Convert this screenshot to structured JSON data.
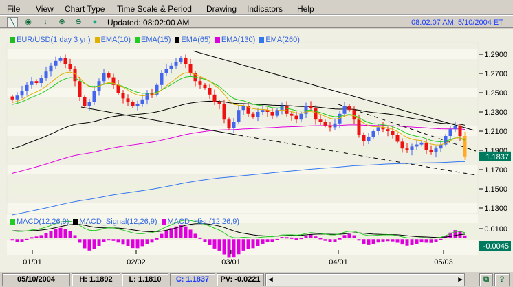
{
  "menu": [
    "File",
    "View",
    "Chart Type",
    "Time Scale & Period",
    "Drawing",
    "Indicators",
    "Help"
  ],
  "toolbar": {
    "icons": [
      "draw-line-icon",
      "crosshair-icon",
      "down-arrow-icon",
      "zoom-in-icon",
      "zoom-out-icon",
      "green-dot-icon"
    ],
    "updated": "Updated: 08:02:00 AM",
    "clock": "08:02:07 AM, 5/10/2004 ET"
  },
  "legend": [
    {
      "label": "EUR/USD(1 day  3 yr.)",
      "color": "#22bb22"
    },
    {
      "label": "EMA(10)",
      "color": "#e0b000"
    },
    {
      "label": "EMA(15)",
      "color": "#22cc22"
    },
    {
      "label": "EMA(65)",
      "color": "#000000"
    },
    {
      "label": "EMA(130)",
      "color": "#dd00dd"
    },
    {
      "label": "EMA(260)",
      "color": "#3377ee"
    }
  ],
  "macd_legend": [
    {
      "label": "MACD(12,26,9)",
      "color": "#22cc22"
    },
    {
      "label": "MACD_Signal(12,26,9)",
      "color": "#000000"
    },
    {
      "label": "MACD_Hist.(12,26,9)",
      "color": "#dd00dd"
    }
  ],
  "chart_data": [
    {
      "type": "candlestick",
      "series_name": "EUR/USD(1 day  3 yr.)",
      "y_ticks": [
        "1.2900",
        "1.2700",
        "1.2500",
        "1.2300",
        "1.2100",
        "1.1900",
        "1.1700",
        "1.1500",
        "1.1300"
      ],
      "ylim": [
        1.125,
        1.298
      ],
      "x_ticks": [
        "01/01",
        "02/02",
        "03/01",
        "04/01",
        "05/03"
      ],
      "last_value": "1.1837",
      "up_color": "#4466ee",
      "down_color": "#ee1111",
      "closes": [
        1.243,
        1.247,
        1.252,
        1.258,
        1.262,
        1.26,
        1.265,
        1.272,
        1.278,
        1.283,
        1.286,
        1.28,
        1.275,
        1.262,
        1.245,
        1.236,
        1.24,
        1.252,
        1.262,
        1.27,
        1.266,
        1.258,
        1.25,
        1.244,
        1.24,
        1.236,
        1.238,
        1.243,
        1.25,
        1.248,
        1.258,
        1.27,
        1.275,
        1.278,
        1.282,
        1.286,
        1.28,
        1.27,
        1.262,
        1.258,
        1.255,
        1.248,
        1.24,
        1.238,
        1.222,
        1.213,
        1.22,
        1.232,
        1.236,
        1.228,
        1.225,
        1.23,
        1.232,
        1.23,
        1.226,
        1.232,
        1.236,
        1.228,
        1.226,
        1.222,
        1.228,
        1.236,
        1.234,
        1.222,
        1.22,
        1.216,
        1.214,
        1.218,
        1.228,
        1.236,
        1.232,
        1.222,
        1.206,
        1.2,
        1.204,
        1.21,
        1.214,
        1.212,
        1.21,
        1.206,
        1.199,
        1.192,
        1.19,
        1.194,
        1.196,
        1.198,
        1.19,
        1.188,
        1.192,
        1.196,
        1.205,
        1.212,
        1.215,
        1.205,
        1.1837
      ]
    },
    {
      "type": "line+bar",
      "series": [
        "MACD(12,26,9)",
        "MACD_Signal(12,26,9)",
        "MACD_Hist.(12,26,9)"
      ],
      "y_ticks": [
        "0.0100"
      ],
      "last_value": "-0.0045"
    }
  ],
  "status": {
    "date": "05/10/2004",
    "high": "H: 1.1892",
    "low": "L: 1.1810",
    "close": "C: 1.1837",
    "pv": "PV: -0.0221"
  }
}
